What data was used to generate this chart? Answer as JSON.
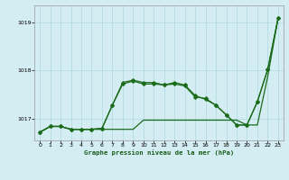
{
  "title": "Graphe pression niveau de la mer (hPa)",
  "background_color": "#d4edf2",
  "grid_color": "#b0d8e0",
  "line_color": "#1a6b1a",
  "xlim": [
    -0.5,
    23.5
  ],
  "ylim": [
    1016.55,
    1019.35
  ],
  "yticks": [
    1017,
    1018,
    1019
  ],
  "xticks": [
    0,
    1,
    2,
    3,
    4,
    5,
    6,
    7,
    8,
    9,
    10,
    11,
    12,
    13,
    14,
    15,
    16,
    17,
    18,
    19,
    20,
    21,
    22,
    23
  ],
  "y_flat": [
    1016.72,
    1016.84,
    1016.84,
    1016.78,
    1016.78,
    1016.78,
    1016.78,
    1016.78,
    1016.78,
    1016.78,
    1016.97,
    1016.97,
    1016.97,
    1016.97,
    1016.97,
    1016.97,
    1016.97,
    1016.97,
    1016.97,
    1016.97,
    1016.87,
    1016.87,
    1017.87,
    1019.08
  ],
  "y_mid": [
    1016.72,
    1016.84,
    1016.84,
    1016.78,
    1016.78,
    1016.78,
    1016.8,
    1017.28,
    1017.72,
    1017.78,
    1017.72,
    1017.72,
    1017.7,
    1017.72,
    1017.68,
    1017.45,
    1017.42,
    1017.28,
    1017.08,
    1016.87,
    1016.87,
    1017.35,
    1018.02,
    1019.08
  ],
  "y_top": [
    1016.72,
    1016.84,
    1016.84,
    1016.78,
    1016.78,
    1016.78,
    1016.8,
    1017.28,
    1017.75,
    1017.8,
    1017.75,
    1017.75,
    1017.7,
    1017.75,
    1017.7,
    1017.48,
    1017.4,
    1017.28,
    1017.08,
    1016.87,
    1016.87,
    1017.35,
    1018.02,
    1019.08
  ]
}
